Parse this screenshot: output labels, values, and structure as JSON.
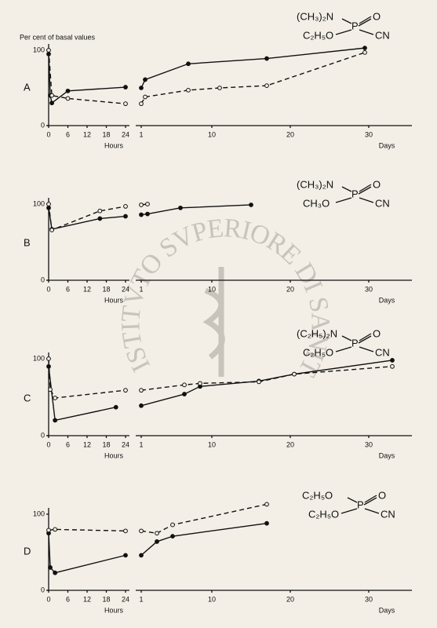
{
  "watermark": "ISTITVTO SVPERIORE DI SANITÀ",
  "chart_data": [
    {
      "type": "line",
      "label": "A",
      "ylabel": "Per cent of basal values",
      "xlabel": "Hours",
      "xlim": [
        0,
        24
      ],
      "xticks": [
        0,
        6,
        12,
        18,
        24
      ],
      "ylim": [
        0,
        100
      ],
      "yticks": [
        0,
        100
      ],
      "series": [
        {
          "style": "solid",
          "color": "#111",
          "x": [
            0,
            0.5,
            1,
            6,
            24
          ],
          "values": [
            95,
            40,
            30,
            46,
            51
          ]
        },
        {
          "style": "dashed",
          "color": "#111",
          "x": [
            0,
            1,
            6,
            24
          ],
          "values": [
            100,
            40,
            36,
            29
          ]
        }
      ]
    },
    {
      "type": "line",
      "xlabel": "Days",
      "xlim": [
        0.5,
        35
      ],
      "xticks": [
        1,
        10,
        20,
        30
      ],
      "ylim": [
        0,
        100
      ],
      "formula": {
        "top_left": "(CH₃)₂N",
        "center": "P",
        "top_right": "O",
        "bottom_left": "C₂H₅O",
        "bottom_right": "CN"
      },
      "series": [
        {
          "style": "solid",
          "color": "#111",
          "x": [
            1,
            1.5,
            7,
            17,
            29.5
          ],
          "values": [
            50,
            61,
            82,
            89,
            103
          ]
        },
        {
          "style": "dashed",
          "color": "#111",
          "x": [
            1,
            1.5,
            7,
            11,
            17,
            29.5
          ],
          "values": [
            29,
            38,
            47,
            50,
            53,
            97
          ]
        }
      ]
    },
    {
      "type": "line",
      "label": "B",
      "xlabel": "Hours",
      "xlim": [
        0,
        24
      ],
      "xticks": [
        0,
        6,
        12,
        18,
        24
      ],
      "ylim": [
        0,
        100
      ],
      "yticks": [
        0,
        100
      ],
      "series": [
        {
          "style": "solid",
          "color": "#111",
          "x": [
            0,
            1,
            16,
            24
          ],
          "values": [
            95,
            67,
            81,
            84
          ]
        },
        {
          "style": "dashed",
          "color": "#111",
          "x": [
            0,
            1,
            16,
            24
          ],
          "values": [
            100,
            66,
            91,
            97
          ]
        }
      ]
    },
    {
      "type": "line",
      "xlabel": "Days",
      "xlim": [
        0.5,
        35
      ],
      "xticks": [
        1,
        10,
        20,
        30
      ],
      "ylim": [
        0,
        100
      ],
      "formula": {
        "top_left": "(CH₃)₂N",
        "center": "P",
        "top_right": "O",
        "bottom_left": "CH₃O",
        "bottom_right": "CN"
      },
      "series": [
        {
          "style": "solid",
          "color": "#111",
          "x": [
            1,
            1.8,
            6,
            15
          ],
          "values": [
            86,
            87,
            95,
            99
          ]
        },
        {
          "style": "dashed",
          "color": "#111",
          "x": [
            1,
            1.8
          ],
          "values": [
            99,
            100
          ]
        }
      ]
    },
    {
      "type": "line",
      "label": "C",
      "xlabel": "Hours",
      "xlim": [
        0,
        24
      ],
      "xticks": [
        0,
        6,
        12,
        18,
        24
      ],
      "ylim": [
        0,
        100
      ],
      "yticks": [
        0,
        100
      ],
      "series": [
        {
          "style": "solid",
          "color": "#111",
          "x": [
            0,
            2,
            21
          ],
          "values": [
            90,
            20,
            37
          ]
        },
        {
          "style": "dashed",
          "color": "#111",
          "x": [
            0,
            0.5,
            2,
            24
          ],
          "values": [
            100,
            60,
            49,
            59
          ]
        }
      ]
    },
    {
      "type": "line",
      "xlabel": "Days",
      "xlim": [
        0.5,
        35
      ],
      "xticks": [
        1,
        10,
        20,
        30
      ],
      "ylim": [
        0,
        100
      ],
      "formula": {
        "top_left": "(C₂H₅)₂N",
        "center": "P",
        "top_right": "O",
        "bottom_left": "C₂H₅O",
        "bottom_right": "CN"
      },
      "series": [
        {
          "style": "solid",
          "color": "#111",
          "x": [
            1,
            6.5,
            8.5,
            16,
            20.5,
            33
          ],
          "values": [
            39,
            54,
            64,
            71,
            80,
            98
          ]
        },
        {
          "style": "dashed",
          "color": "#111",
          "x": [
            1,
            6.5,
            8.5,
            16,
            20.5,
            33
          ],
          "values": [
            59,
            66,
            68,
            70,
            80,
            90
          ]
        }
      ]
    },
    {
      "type": "line",
      "label": "D",
      "xlabel": "Hours",
      "xlim": [
        0,
        24
      ],
      "xticks": [
        0,
        6,
        12,
        18,
        24
      ],
      "ylim": [
        0,
        100
      ],
      "yticks": [
        0,
        100
      ],
      "series": [
        {
          "style": "solid",
          "color": "#111",
          "x": [
            0,
            0.5,
            2,
            24
          ],
          "values": [
            75,
            30,
            23,
            46
          ]
        },
        {
          "style": "dashed",
          "color": "#111",
          "x": [
            0,
            2,
            24
          ],
          "values": [
            79,
            80,
            78
          ]
        }
      ]
    },
    {
      "type": "line",
      "xlabel": "Days",
      "xlim": [
        0.5,
        35
      ],
      "xticks": [
        1,
        10,
        20,
        30
      ],
      "ylim": [
        0,
        100
      ],
      "formula": {
        "top_left": "C₂H₅O",
        "center": "P",
        "top_right": "O",
        "bottom_left": "C₂H₅O",
        "bottom_right": "CN"
      },
      "series": [
        {
          "style": "solid",
          "color": "#111",
          "x": [
            1,
            3,
            5,
            17
          ],
          "values": [
            46,
            64,
            71,
            88
          ]
        },
        {
          "style": "dashed",
          "color": "#111",
          "x": [
            1,
            3,
            5,
            17
          ],
          "values": [
            78,
            75,
            86,
            113
          ]
        }
      ]
    }
  ]
}
